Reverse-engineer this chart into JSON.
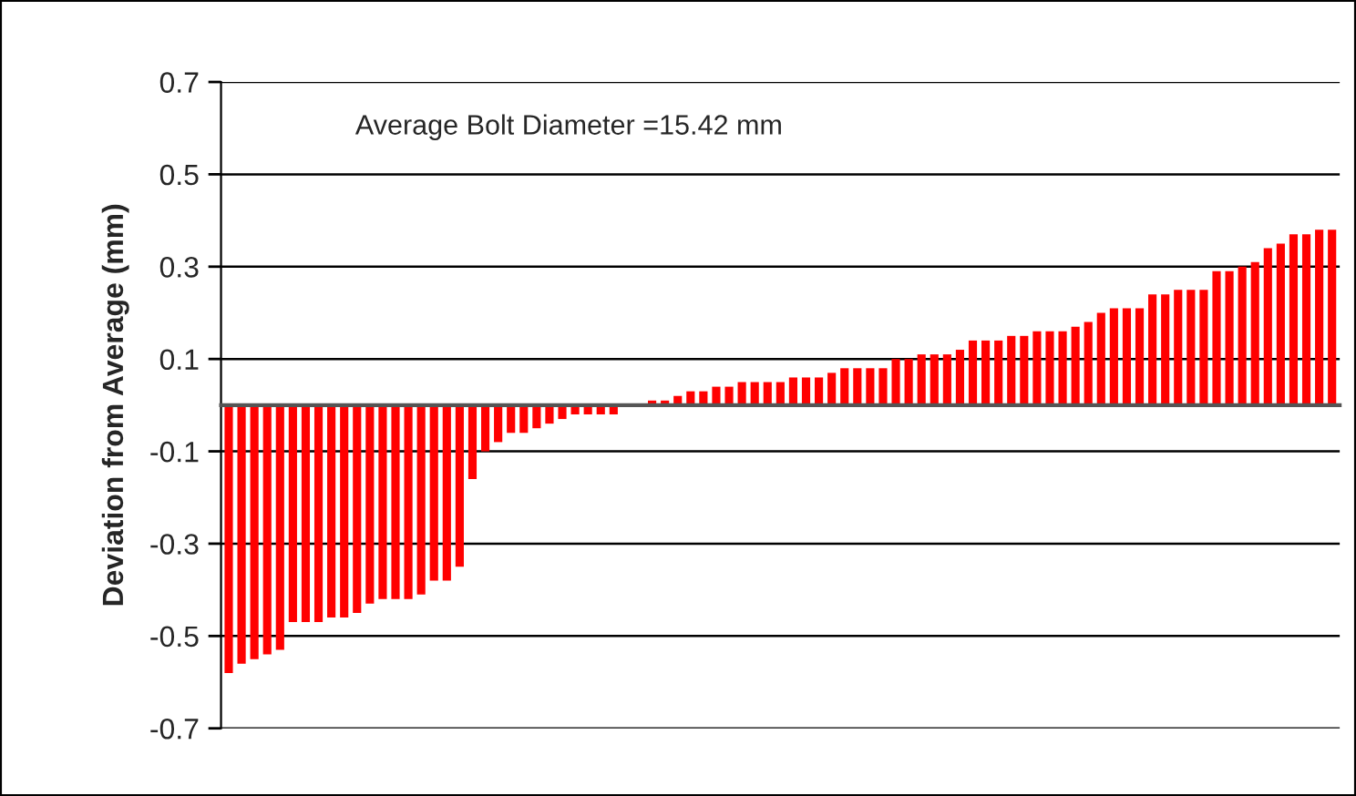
{
  "chart_data": {
    "type": "bar",
    "ylabel": "Deviation from Average (mm)",
    "annotations": [
      "Average Bolt Diameter =15.42 mm"
    ],
    "categories": [
      null,
      null,
      null,
      null,
      null,
      null,
      null,
      null,
      null,
      null,
      null,
      null,
      null,
      null,
      null,
      null,
      null,
      null,
      null,
      null,
      null,
      null,
      null,
      null,
      null,
      null,
      null,
      null,
      null,
      null,
      null,
      null,
      null,
      null,
      null,
      null,
      null,
      null,
      null,
      null,
      null,
      null,
      null,
      null,
      null,
      null,
      null,
      null,
      null,
      null,
      null,
      null,
      null,
      null,
      null,
      null,
      null,
      null,
      null,
      null,
      null,
      null,
      null,
      null,
      null,
      null,
      null,
      null,
      null,
      null,
      null,
      null,
      null,
      null,
      null,
      null,
      null,
      null,
      null,
      null,
      null,
      null,
      null,
      null,
      null,
      null,
      null
    ],
    "values": [
      -0.58,
      -0.56,
      -0.55,
      -0.54,
      -0.53,
      -0.47,
      -0.47,
      -0.47,
      -0.46,
      -0.46,
      -0.45,
      -0.43,
      -0.42,
      -0.42,
      -0.42,
      -0.41,
      -0.38,
      -0.38,
      -0.35,
      -0.16,
      -0.1,
      -0.08,
      -0.06,
      -0.06,
      -0.05,
      -0.04,
      -0.03,
      -0.02,
      -0.02,
      -0.02,
      -0.02,
      0,
      0,
      0.01,
      0.01,
      0.02,
      0.03,
      0.03,
      0.04,
      0.04,
      0.05,
      0.05,
      0.05,
      0.05,
      0.06,
      0.06,
      0.06,
      0.07,
      0.08,
      0.08,
      0.08,
      0.08,
      0.1,
      0.1,
      0.11,
      0.11,
      0.11,
      0.12,
      0.14,
      0.14,
      0.14,
      0.15,
      0.15,
      0.16,
      0.16,
      0.16,
      0.17,
      0.18,
      0.2,
      0.21,
      0.21,
      0.21,
      0.24,
      0.24,
      0.25,
      0.25,
      0.25,
      0.29,
      0.29,
      0.3,
      0.31,
      0.34,
      0.35,
      0.37,
      0.37,
      0.38,
      0.38
    ],
    "color": "#ff0000",
    "ylim": [
      -0.7,
      0.7
    ],
    "yticks": [
      0.7,
      0.5,
      0.3,
      0.1,
      -0.1,
      -0.3,
      -0.5,
      -0.7
    ],
    "grid": "y",
    "legend": false
  }
}
